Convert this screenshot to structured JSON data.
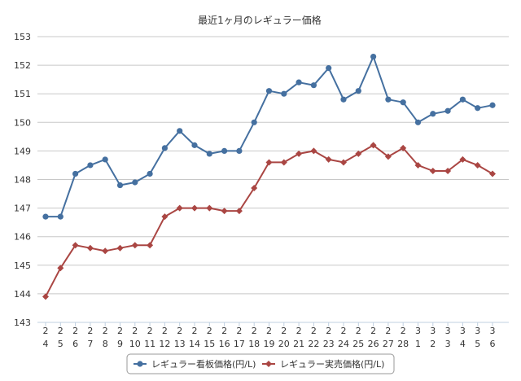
{
  "chart_data": {
    "type": "line",
    "title": "最近1ヶ月のレギュラー価格",
    "xlabel": "",
    "ylabel": "",
    "ylim": [
      143,
      153
    ],
    "yticks": [
      143,
      144,
      145,
      146,
      147,
      148,
      149,
      150,
      151,
      152,
      153
    ],
    "grid": true,
    "legend_position": "bottom",
    "categories": [
      [
        "2",
        "4"
      ],
      [
        "2",
        "5"
      ],
      [
        "2",
        "6"
      ],
      [
        "2",
        "7"
      ],
      [
        "2",
        "8"
      ],
      [
        "2",
        "9"
      ],
      [
        "2",
        "10"
      ],
      [
        "2",
        "11"
      ],
      [
        "2",
        "12"
      ],
      [
        "2",
        "13"
      ],
      [
        "2",
        "14"
      ],
      [
        "2",
        "15"
      ],
      [
        "2",
        "16"
      ],
      [
        "2",
        "17"
      ],
      [
        "2",
        "18"
      ],
      [
        "2",
        "19"
      ],
      [
        "2",
        "20"
      ],
      [
        "2",
        "21"
      ],
      [
        "2",
        "22"
      ],
      [
        "2",
        "23"
      ],
      [
        "2",
        "24"
      ],
      [
        "2",
        "25"
      ],
      [
        "2",
        "26"
      ],
      [
        "2",
        "27"
      ],
      [
        "2",
        "28"
      ],
      [
        "3",
        "1"
      ],
      [
        "3",
        "2"
      ],
      [
        "3",
        "3"
      ],
      [
        "3",
        "4"
      ],
      [
        "3",
        "5"
      ],
      [
        "3",
        "6"
      ]
    ],
    "series": [
      {
        "name": "レギュラー看板価格(円/L)",
        "color": "#4570a0",
        "marker": "circle",
        "values": [
          146.7,
          146.7,
          148.2,
          148.5,
          148.7,
          147.8,
          147.9,
          148.2,
          149.1,
          149.7,
          149.2,
          148.9,
          149.0,
          149.0,
          150.0,
          151.1,
          151.0,
          151.4,
          151.3,
          151.9,
          150.8,
          151.1,
          152.3,
          150.8,
          150.7,
          150.0,
          150.3,
          150.4,
          150.8,
          150.5,
          150.6
        ]
      },
      {
        "name": "レギュラー実売価格(円/L)",
        "color": "#aa4643",
        "marker": "diamond",
        "values": [
          143.9,
          144.9,
          145.7,
          145.6,
          145.5,
          145.6,
          145.7,
          145.7,
          146.7,
          147.0,
          147.0,
          147.0,
          146.9,
          146.9,
          147.7,
          148.6,
          148.6,
          148.9,
          149.0,
          148.7,
          148.6,
          148.9,
          149.2,
          148.8,
          149.1,
          148.5,
          148.3,
          148.3,
          148.7,
          148.5,
          148.2
        ]
      }
    ]
  }
}
